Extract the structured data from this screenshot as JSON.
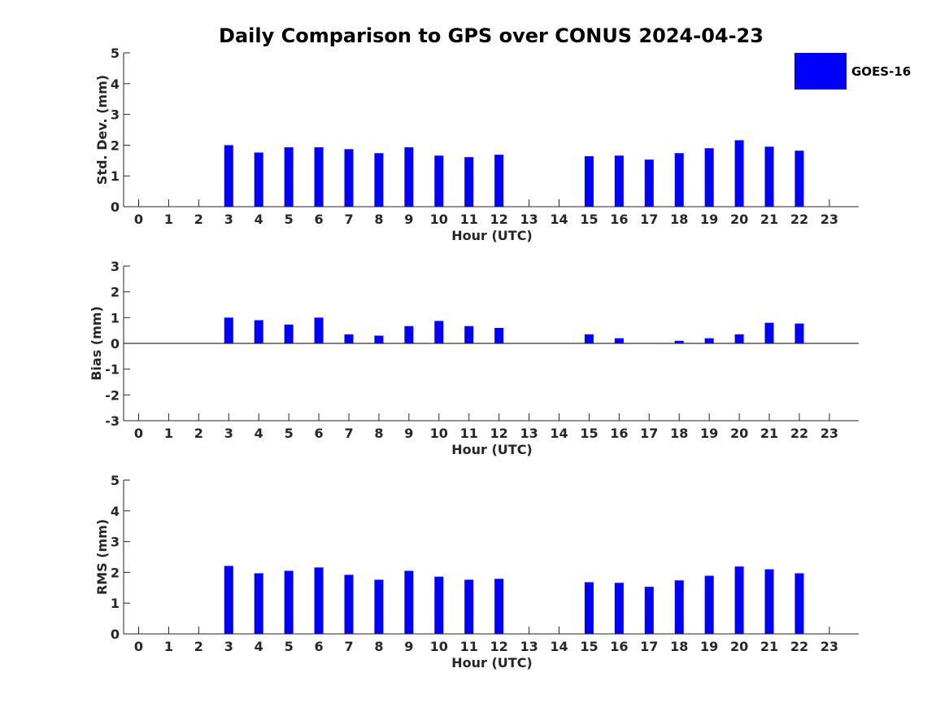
{
  "title": "Daily Comparison to GPS over CONUS 2024-04-23",
  "legend": {
    "entries": [
      "GOES-16"
    ],
    "placement": "top-right"
  },
  "colors": {
    "series": "#0000ff",
    "axis": "#262626"
  },
  "chart_data": [
    {
      "type": "bar",
      "xlabel": "Hour (UTC)",
      "ylabel": "Std. Dev. (mm)",
      "ylim": [
        0,
        5
      ],
      "yticks": [
        "0",
        "1",
        "2",
        "3",
        "4",
        "5"
      ],
      "grid": false,
      "categories": [
        "0",
        "1",
        "2",
        "3",
        "4",
        "5",
        "6",
        "7",
        "8",
        "9",
        "10",
        "11",
        "12",
        "13",
        "14",
        "15",
        "16",
        "17",
        "18",
        "19",
        "20",
        "21",
        "22",
        "23"
      ],
      "series": [
        {
          "name": "GOES-16",
          "values": [
            null,
            null,
            null,
            2.0,
            1.76,
            1.93,
            1.93,
            1.87,
            1.74,
            1.93,
            1.66,
            1.61,
            1.69,
            null,
            null,
            1.64,
            1.66,
            1.53,
            1.74,
            1.9,
            2.16,
            1.95,
            1.82,
            null
          ]
        }
      ]
    },
    {
      "type": "bar",
      "xlabel": "Hour (UTC)",
      "ylabel": "Bias (mm)",
      "ylim": [
        -3,
        3
      ],
      "yticks": [
        "-3",
        "-2",
        "-1",
        "0",
        "1",
        "2",
        "3"
      ],
      "grid": false,
      "categories": [
        "0",
        "1",
        "2",
        "3",
        "4",
        "5",
        "6",
        "7",
        "8",
        "9",
        "10",
        "11",
        "12",
        "13",
        "14",
        "15",
        "16",
        "17",
        "18",
        "19",
        "20",
        "21",
        "22",
        "23"
      ],
      "series": [
        {
          "name": "GOES-16",
          "values": [
            null,
            null,
            null,
            1.0,
            0.9,
            0.73,
            1.0,
            0.35,
            0.3,
            0.67,
            0.87,
            0.67,
            0.6,
            null,
            null,
            0.35,
            0.2,
            null,
            0.1,
            0.2,
            0.35,
            0.8,
            0.77,
            null
          ]
        }
      ]
    },
    {
      "type": "bar",
      "xlabel": "Hour (UTC)",
      "ylabel": "RMS (mm)",
      "ylim": [
        0,
        5
      ],
      "yticks": [
        "0",
        "1",
        "2",
        "3",
        "4",
        "5"
      ],
      "grid": false,
      "categories": [
        "0",
        "1",
        "2",
        "3",
        "4",
        "5",
        "6",
        "7",
        "8",
        "9",
        "10",
        "11",
        "12",
        "13",
        "14",
        "15",
        "16",
        "17",
        "18",
        "19",
        "20",
        "21",
        "22",
        "23"
      ],
      "series": [
        {
          "name": "GOES-16",
          "values": [
            null,
            null,
            null,
            2.21,
            1.97,
            2.05,
            2.16,
            1.92,
            1.76,
            2.05,
            1.86,
            1.76,
            1.79,
            null,
            null,
            1.68,
            1.66,
            1.53,
            1.74,
            1.89,
            2.19,
            2.1,
            1.97,
            null
          ]
        }
      ]
    }
  ]
}
